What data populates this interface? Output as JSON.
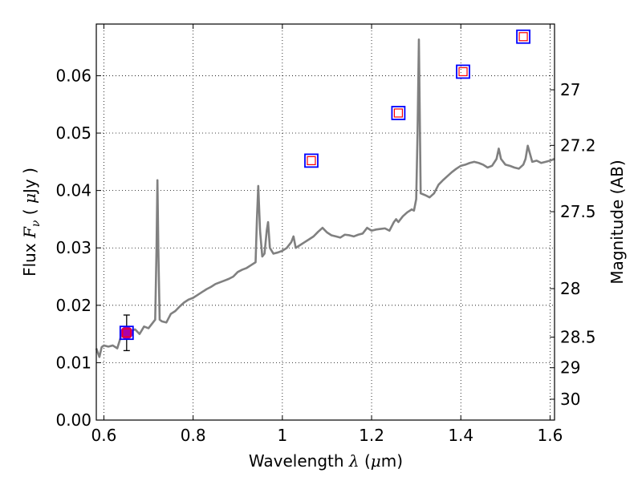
{
  "chart_data": {
    "type": "scatter",
    "xlabel": "Wavelength",
    "xlabel_symbol": "λ",
    "xlabel_unit_open": "(",
    "xlabel_unit_mu": "μ",
    "xlabel_unit_rest": "m)",
    "ylabel": "Flux",
    "ylabel_symbol": "F",
    "ylabel_symbol_sub": "ν",
    "ylabel_unit_open": "(",
    "ylabel_unit_mu": "μ",
    "ylabel_unit_rest": "Jy )",
    "y2label": "Magnitude (AB)",
    "xlim": [
      0.583,
      1.61
    ],
    "ylim": [
      0.0,
      0.069
    ],
    "grid": true,
    "x_ticks": [
      {
        "value": 0.6,
        "label": "0.6"
      },
      {
        "value": 0.8,
        "label": "0.8"
      },
      {
        "value": 1.0,
        "label": "1"
      },
      {
        "value": 1.2,
        "label": "1.2"
      },
      {
        "value": 1.4,
        "label": "1.4"
      },
      {
        "value": 1.6,
        "label": "1.6"
      }
    ],
    "y_ticks": [
      {
        "value": 0.0,
        "label": "0.00"
      },
      {
        "value": 0.01,
        "label": "0.01"
      },
      {
        "value": 0.02,
        "label": "0.02"
      },
      {
        "value": 0.03,
        "label": "0.03"
      },
      {
        "value": 0.04,
        "label": "0.04"
      },
      {
        "value": 0.05,
        "label": "0.05"
      },
      {
        "value": 0.06,
        "label": "0.06"
      }
    ],
    "y2_ticks": [
      {
        "value": 27.0,
        "label": "27"
      },
      {
        "value": 27.2,
        "label": "27.2"
      },
      {
        "value": 27.5,
        "label": "27.5"
      },
      {
        "value": 28.0,
        "label": "28"
      },
      {
        "value": 28.5,
        "label": "28.5"
      },
      {
        "value": 29.0,
        "label": "29"
      },
      {
        "value": 30.0,
        "label": "30"
      }
    ],
    "colors": {
      "spectrum": "#808080",
      "open_square_outer": "#0000ff",
      "open_square_inner": "#ff0000",
      "filled_circle": "#aa00aa",
      "errorbar": "#000000",
      "grid": "#000000"
    },
    "series": [
      {
        "kind": "line",
        "x": [
          0.583,
          0.59,
          0.595,
          0.6,
          0.61,
          0.62,
          0.63,
          0.64,
          0.65,
          0.66,
          0.67,
          0.68,
          0.69,
          0.7,
          0.71,
          0.715,
          0.718,
          0.72,
          0.722,
          0.725,
          0.73,
          0.74,
          0.75,
          0.76,
          0.77,
          0.78,
          0.79,
          0.8,
          0.81,
          0.82,
          0.83,
          0.84,
          0.85,
          0.86,
          0.87,
          0.88,
          0.89,
          0.9,
          0.91,
          0.92,
          0.93,
          0.94,
          0.943,
          0.946,
          0.95,
          0.955,
          0.96,
          0.965,
          0.968,
          0.972,
          0.98,
          0.99,
          1.0,
          1.01,
          1.02,
          1.025,
          1.03,
          1.04,
          1.05,
          1.06,
          1.07,
          1.08,
          1.09,
          1.1,
          1.11,
          1.12,
          1.13,
          1.14,
          1.15,
          1.16,
          1.17,
          1.18,
          1.19,
          1.2,
          1.21,
          1.22,
          1.23,
          1.24,
          1.25,
          1.255,
          1.26,
          1.27,
          1.28,
          1.29,
          1.295,
          1.3,
          1.303,
          1.306,
          1.31,
          1.32,
          1.33,
          1.34,
          1.35,
          1.36,
          1.37,
          1.38,
          1.39,
          1.4,
          1.41,
          1.42,
          1.43,
          1.44,
          1.45,
          1.46,
          1.47,
          1.48,
          1.485,
          1.49,
          1.5,
          1.51,
          1.52,
          1.53,
          1.54,
          1.545,
          1.55,
          1.56,
          1.57,
          1.58,
          1.59,
          1.6,
          1.61
        ],
        "y": [
          0.0125,
          0.011,
          0.0127,
          0.013,
          0.0128,
          0.013,
          0.0125,
          0.015,
          0.0148,
          0.0155,
          0.0158,
          0.015,
          0.0163,
          0.016,
          0.017,
          0.0175,
          0.03,
          0.0418,
          0.03,
          0.0175,
          0.0172,
          0.017,
          0.0185,
          0.019,
          0.0198,
          0.0205,
          0.021,
          0.0213,
          0.0218,
          0.0223,
          0.0228,
          0.0232,
          0.0237,
          0.024,
          0.0243,
          0.0246,
          0.025,
          0.0258,
          0.0262,
          0.0265,
          0.027,
          0.0275,
          0.035,
          0.0408,
          0.033,
          0.0285,
          0.029,
          0.033,
          0.0345,
          0.03,
          0.029,
          0.0292,
          0.0295,
          0.03,
          0.031,
          0.032,
          0.03,
          0.0305,
          0.031,
          0.0315,
          0.032,
          0.0328,
          0.0335,
          0.0327,
          0.0322,
          0.032,
          0.0318,
          0.0323,
          0.0322,
          0.032,
          0.0323,
          0.0325,
          0.0335,
          0.033,
          0.0332,
          0.0333,
          0.0334,
          0.033,
          0.0345,
          0.035,
          0.0345,
          0.0355,
          0.0362,
          0.0367,
          0.0365,
          0.0385,
          0.05,
          0.0663,
          0.0395,
          0.0392,
          0.0388,
          0.0395,
          0.041,
          0.0418,
          0.0425,
          0.0432,
          0.0438,
          0.0443,
          0.0445,
          0.0448,
          0.045,
          0.0448,
          0.0445,
          0.044,
          0.0443,
          0.0455,
          0.0473,
          0.0455,
          0.0445,
          0.0443,
          0.044,
          0.0438,
          0.0445,
          0.0455,
          0.0478,
          0.045,
          0.0452,
          0.0448,
          0.045,
          0.0452,
          0.0455
        ]
      },
      {
        "kind": "open_squares",
        "x": [
          0.651,
          1.065,
          1.26,
          1.405,
          1.54
        ],
        "y": [
          0.0152,
          0.0452,
          0.0535,
          0.0607,
          0.0668
        ]
      },
      {
        "kind": "filled_circle_with_errorbar",
        "x": [
          0.651
        ],
        "y": [
          0.0152
        ],
        "yerr": [
          0.0031
        ]
      }
    ]
  }
}
